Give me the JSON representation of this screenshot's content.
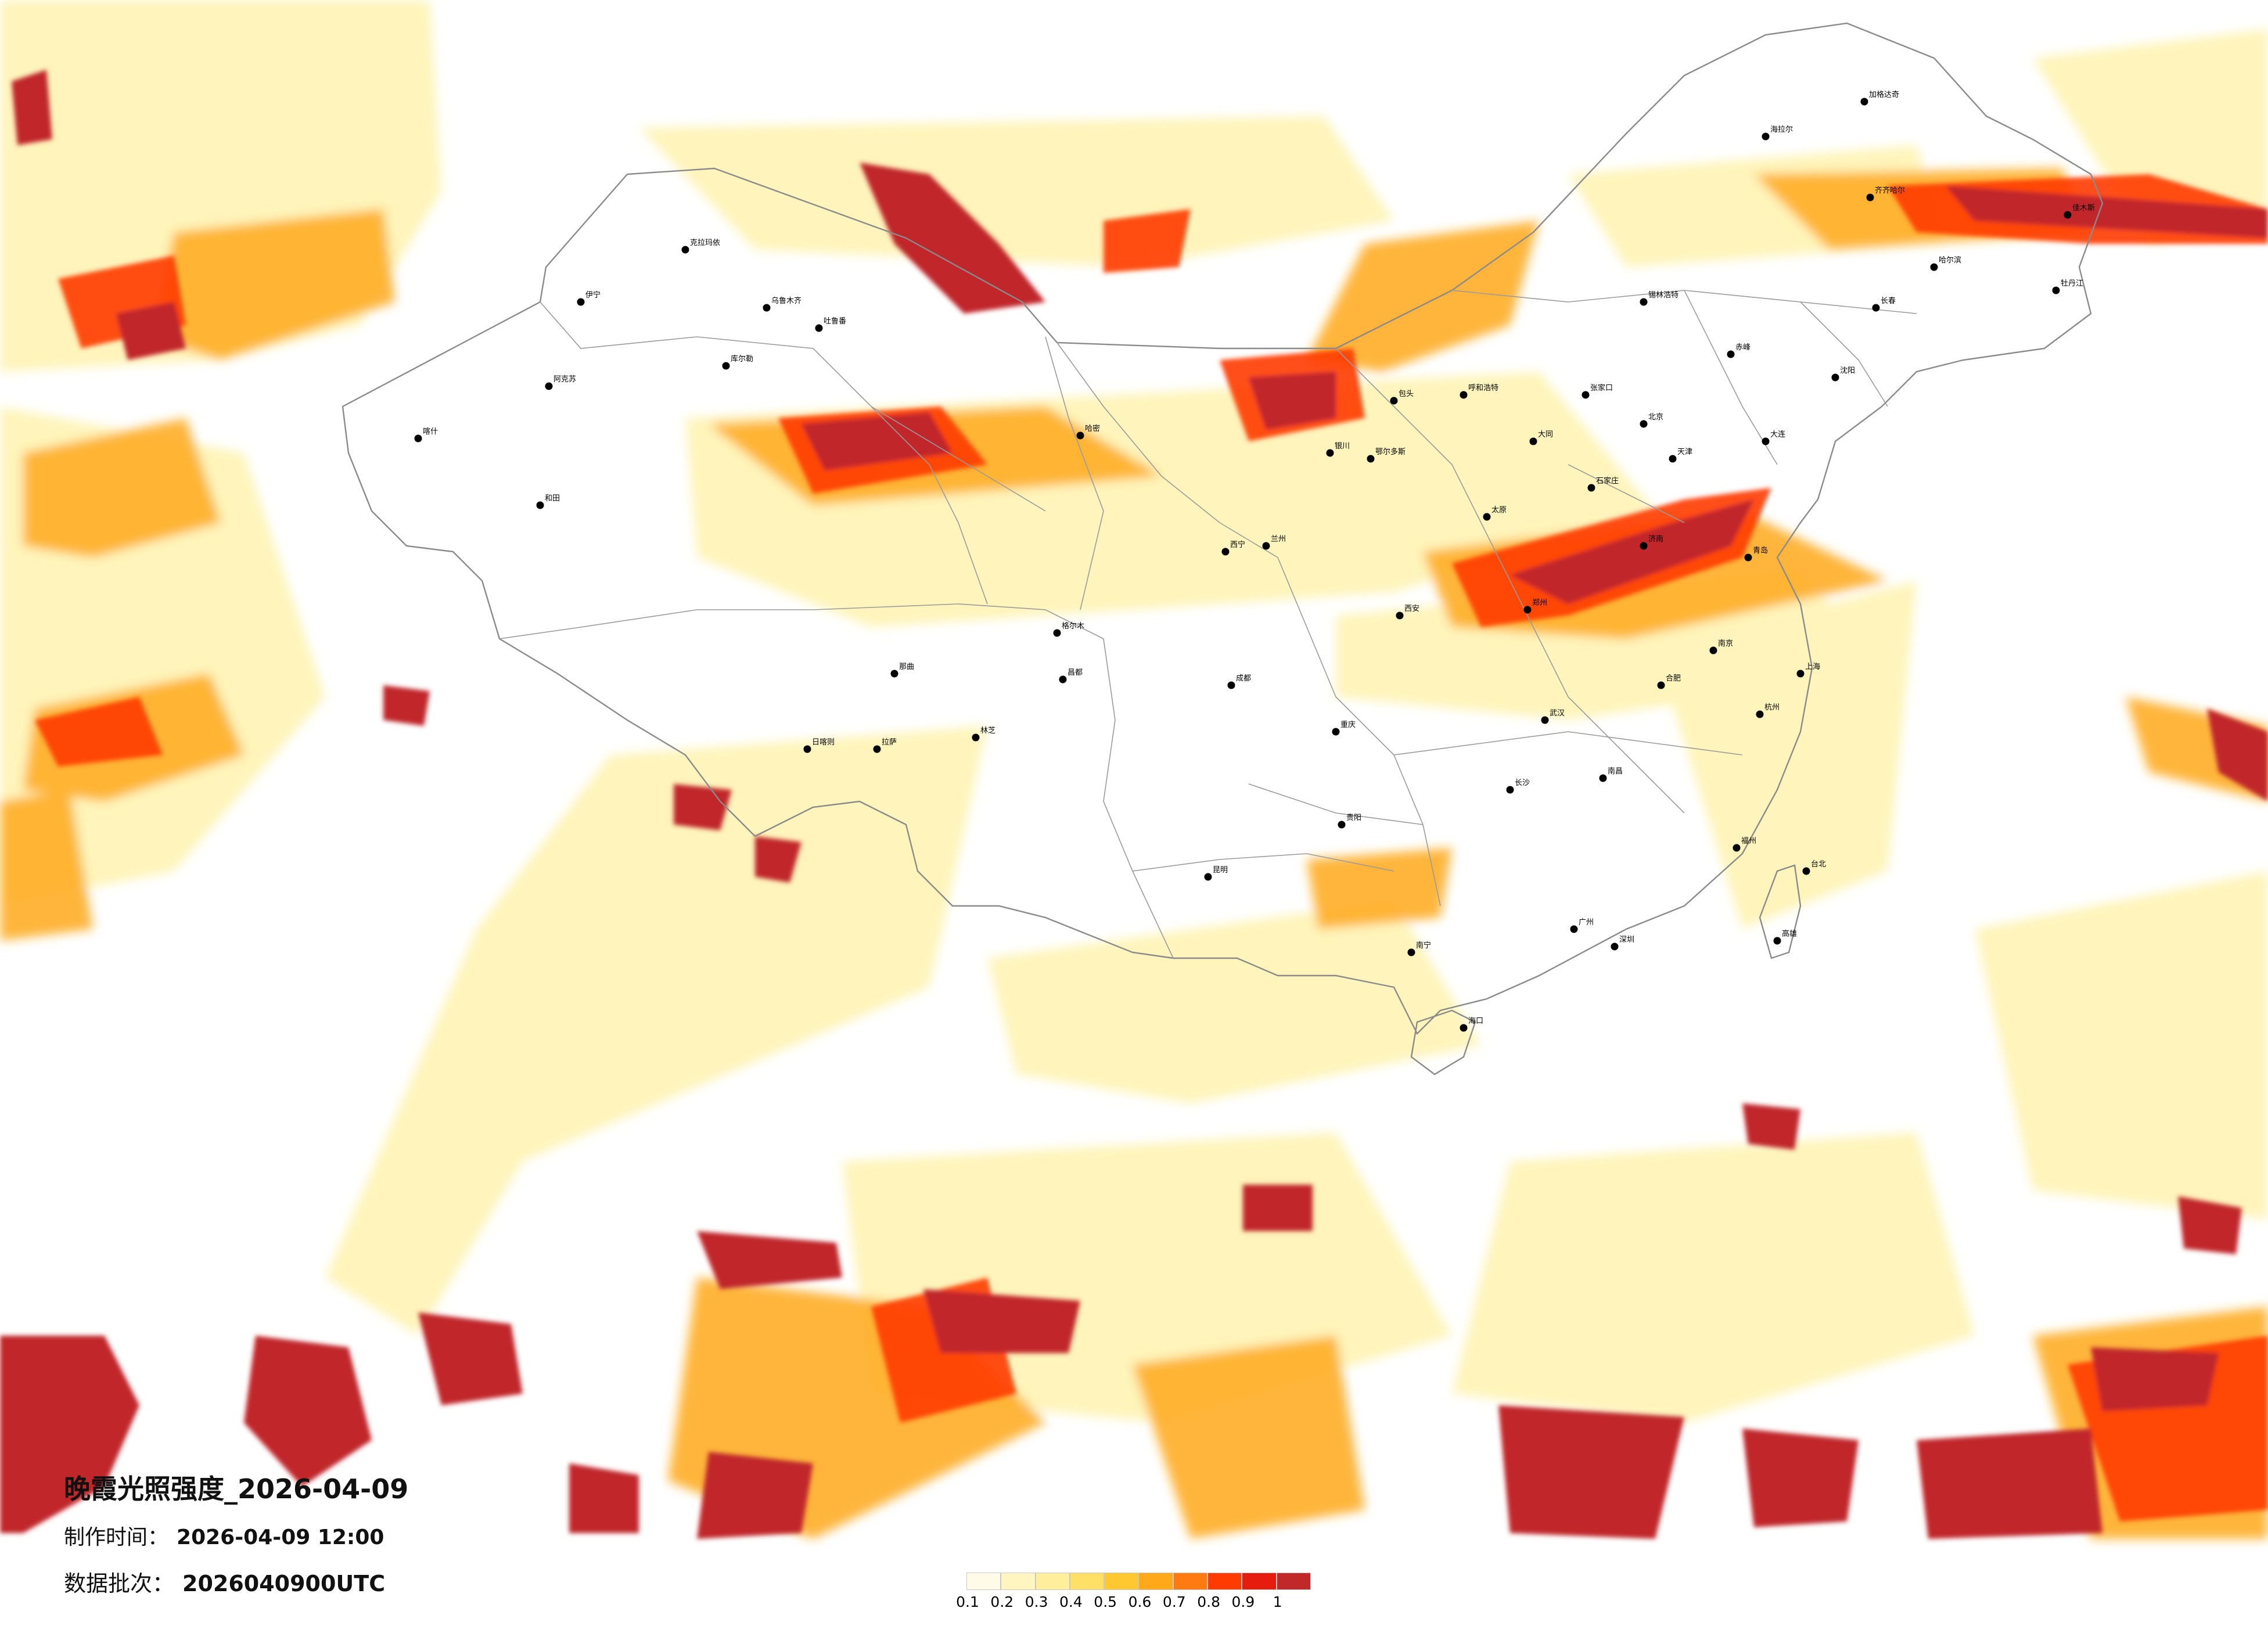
{
  "map": {
    "title": "晚霞光照强度_2026-04-09",
    "made_label": "制作时间：",
    "made_value": "2026-04-09 12:00",
    "batch_label": "数据批次：",
    "batch_value": "2026040900UTC"
  },
  "legend": {
    "ticks": [
      "0.1",
      "0.2",
      "0.3",
      "0.4",
      "0.5",
      "0.6",
      "0.7",
      "0.8",
      "0.9",
      "1"
    ],
    "colors": [
      "#fffbe6",
      "#fff5c0",
      "#ffee9a",
      "#ffe066",
      "#ffc830",
      "#ffa91a",
      "#ff7a10",
      "#ff3b00",
      "#e51c0e",
      "#c0282a"
    ]
  },
  "intensity_colors": {
    "low": "#fff3b0",
    "mid": "#ffb400",
    "high": "#ff3b00",
    "max": "#c0282a"
  },
  "cities": [
    {
      "name": "克拉玛依"
    },
    {
      "name": "乌鲁木齐"
    },
    {
      "name": "伊宁"
    },
    {
      "name": "阿克苏"
    },
    {
      "name": "喀什"
    },
    {
      "name": "和田"
    },
    {
      "name": "哈密"
    },
    {
      "name": "库尔勒"
    },
    {
      "name": "吐鲁番"
    },
    {
      "name": "格尔木"
    },
    {
      "name": "西宁"
    },
    {
      "name": "拉萨"
    },
    {
      "name": "日喀则"
    },
    {
      "name": "林芝"
    },
    {
      "name": "昌都"
    },
    {
      "name": "那曲"
    },
    {
      "name": "兰州"
    },
    {
      "name": "银川"
    },
    {
      "name": "呼和浩特"
    },
    {
      "name": "包头"
    },
    {
      "name": "鄂尔多斯"
    },
    {
      "name": "西安"
    },
    {
      "name": "太原"
    },
    {
      "name": "北京"
    },
    {
      "name": "天津"
    },
    {
      "name": "石家庄"
    },
    {
      "name": "济南"
    },
    {
      "name": "青岛"
    },
    {
      "name": "郑州"
    },
    {
      "name": "武汉"
    },
    {
      "name": "南京"
    },
    {
      "name": "上海"
    },
    {
      "name": "杭州"
    },
    {
      "name": "合肥"
    },
    {
      "name": "南昌"
    },
    {
      "name": "长沙"
    },
    {
      "name": "福州"
    },
    {
      "name": "广州"
    },
    {
      "name": "深圳"
    },
    {
      "name": "南宁"
    },
    {
      "name": "海口"
    },
    {
      "name": "昆明"
    },
    {
      "name": "贵阳"
    },
    {
      "name": "成都"
    },
    {
      "name": "重庆"
    },
    {
      "name": "沈阳"
    },
    {
      "name": "长春"
    },
    {
      "name": "哈尔滨"
    },
    {
      "name": "大连"
    },
    {
      "name": "齐齐哈尔"
    },
    {
      "name": "佳木斯"
    },
    {
      "name": "牡丹江"
    },
    {
      "name": "海拉尔"
    },
    {
      "name": "加格达奇"
    },
    {
      "name": "赤峰"
    },
    {
      "name": "锡林浩特"
    },
    {
      "name": "张家口"
    },
    {
      "name": "大同"
    },
    {
      "name": "台北"
    },
    {
      "name": "高雄"
    }
  ]
}
